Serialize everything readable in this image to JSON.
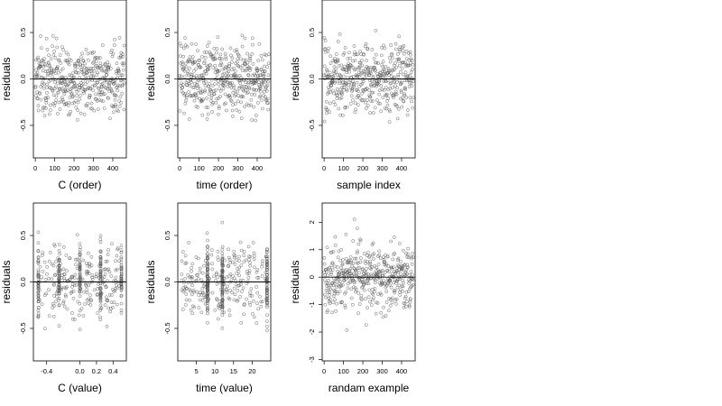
{
  "chart_data": [
    {
      "type": "scatter",
      "panel": "C-order",
      "xlabel": "C (order)",
      "ylabel": "residuals",
      "xlim": [
        -10,
        470
      ],
      "ylim": [
        -0.85,
        0.85
      ],
      "xticks": [
        0,
        100,
        200,
        300,
        400
      ],
      "yticks": [
        -0.5,
        0.0,
        0.5
      ],
      "ytick_labels": [
        "-0.5",
        "0.0",
        "0.5"
      ],
      "hline": 0,
      "n_points": 460,
      "x_range": [
        0,
        460
      ],
      "y_range": [
        -0.82,
        0.8
      ],
      "marker": "open-circle"
    },
    {
      "type": "scatter",
      "panel": "time-order",
      "xlabel": "time (order)",
      "ylabel": "residuals",
      "xlim": [
        -10,
        470
      ],
      "ylim": [
        -0.85,
        0.85
      ],
      "xticks": [
        0,
        100,
        200,
        300,
        400
      ],
      "yticks": [
        -0.5,
        0.0,
        0.5
      ],
      "ytick_labels": [
        "-0.5",
        "0.0",
        "0.5"
      ],
      "hline": 0,
      "n_points": 460,
      "x_range": [
        0,
        460
      ],
      "y_range": [
        -0.82,
        0.8
      ],
      "marker": "open-circle"
    },
    {
      "type": "scatter",
      "panel": "sample-index",
      "xlabel": "sample index",
      "ylabel": "residuals",
      "xlim": [
        -10,
        470
      ],
      "ylim": [
        -0.85,
        0.85
      ],
      "xticks": [
        0,
        100,
        200,
        300,
        400
      ],
      "yticks": [
        -0.5,
        0.0,
        0.5
      ],
      "ytick_labels": [
        "-0.5",
        "0.0",
        "0.5"
      ],
      "hline": 0,
      "n_points": 460,
      "x_range": [
        0,
        460
      ],
      "y_range": [
        -0.82,
        0.8
      ],
      "marker": "open-circle"
    },
    {
      "type": "scatter",
      "panel": "C-value",
      "xlabel": "C (value)",
      "ylabel": "residuals",
      "xlim": [
        -0.56,
        0.56
      ],
      "ylim": [
        -0.85,
        0.85
      ],
      "xticks": [
        -0.4,
        0.0,
        0.2,
        0.4
      ],
      "xtick_labels": [
        "-0.4",
        "0.0",
        "0.2",
        "0.4"
      ],
      "yticks": [
        -0.5,
        0.0,
        0.5
      ],
      "ytick_labels": [
        "-0.5",
        "0.0",
        "0.5"
      ],
      "hline": 0,
      "n_points": 460,
      "x_range": [
        -0.5,
        0.5
      ],
      "y_range": [
        -0.82,
        0.8
      ],
      "dense_columns": [
        -0.5,
        -0.25,
        0.0,
        0.25,
        0.5
      ],
      "marker": "open-circle"
    },
    {
      "type": "scatter",
      "panel": "time-value",
      "xlabel": "time (value)",
      "ylabel": "residuals",
      "xlim": [
        0,
        25
      ],
      "ylim": [
        -0.85,
        0.85
      ],
      "xticks": [
        5,
        10,
        15,
        20
      ],
      "yticks": [
        -0.5,
        0.0,
        0.5
      ],
      "ytick_labels": [
        "-0.5",
        "0.0",
        "0.5"
      ],
      "hline": 0,
      "n_points": 460,
      "x_range": [
        1,
        24
      ],
      "y_range": [
        -0.82,
        0.8
      ],
      "dense_columns": [
        8,
        12,
        24
      ],
      "marker": "open-circle"
    },
    {
      "type": "scatter",
      "panel": "random-example",
      "xlabel": "randam example",
      "ylabel": "residuals",
      "xlim": [
        -10,
        470
      ],
      "ylim": [
        -3.05,
        2.7
      ],
      "xticks": [
        0,
        100,
        200,
        300,
        400
      ],
      "yticks": [
        -3,
        -2,
        -1,
        0,
        1,
        2
      ],
      "hline": 0,
      "n_points": 460,
      "x_range": [
        0,
        460
      ],
      "y_range": [
        -2.9,
        2.5
      ],
      "marker": "open-circle"
    }
  ]
}
